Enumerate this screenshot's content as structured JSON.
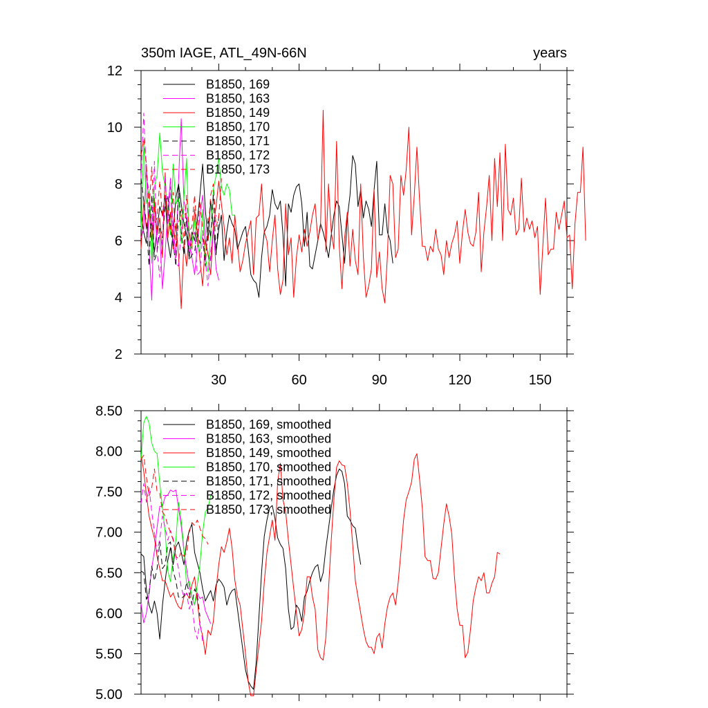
{
  "figure": {
    "title_left": "350m IAGE, ATL_49N-66N",
    "title_right": "years"
  },
  "chart_data": [
    {
      "type": "line",
      "name": "raw",
      "xlim": [
        1,
        160
      ],
      "ylim": [
        2,
        12
      ],
      "xticks": [
        30,
        60,
        90,
        120,
        150
      ],
      "yticks": [
        2,
        4,
        6,
        8,
        10,
        12
      ],
      "ytick_labels": [
        "2",
        "4",
        "6",
        "8",
        "10",
        "12"
      ],
      "series": [
        {
          "name": "B1850, 169",
          "color": "#000000",
          "dash": "",
          "values": [
            7.0,
            6.3,
            5.9,
            7.1,
            6.5,
            5.6,
            6.4,
            7.2,
            6.9,
            7.6,
            6.0,
            5.4,
            6.3,
            7.5,
            8.0,
            7.3,
            6.6,
            6.2,
            5.4,
            6.3,
            6.0,
            6.7,
            7.6,
            8.7,
            7.1,
            6.0,
            7.4,
            6.5,
            5.6,
            6.4,
            6.9,
            5.3,
            6.3,
            6.9,
            6.6,
            6.4,
            5.7,
            6.0,
            6.3,
            6.5,
            5.7,
            4.8,
            4.6,
            4.5,
            4.0,
            5.4,
            6.3,
            6.5,
            6.9,
            7.8,
            7.3,
            7.1,
            7.4,
            6.2,
            4.4,
            7.3,
            7.0,
            7.6,
            7.9,
            8.0,
            7.3,
            5.8,
            7.0,
            5.1,
            5.0,
            5.5,
            6.0,
            6.6,
            6.3,
            5.9,
            5.4,
            6.2,
            6.9,
            7.4,
            7.2,
            6.2,
            5.2,
            6.8,
            7.6,
            9.0,
            8.7,
            7.2,
            7.8,
            6.8,
            7.4,
            7.1,
            6.5,
            7.8,
            8.8,
            6.2,
            6.2,
            7.3,
            6.3,
            6.0,
            5.2
          ]
        },
        {
          "name": "B1850, 163",
          "color": "#ff00ff",
          "dash": "",
          "values": [
            6.1,
            6.4,
            8.7,
            5.8,
            3.9,
            7.4,
            5.8,
            6.2,
            4.3,
            5.6,
            7.0,
            8.2,
            6.5,
            5.4,
            8.1,
            10.3,
            7.4,
            6.9,
            6.0,
            5.4,
            4.8,
            5.8,
            6.9,
            7.6,
            6.1,
            5.5,
            5.3,
            6.5,
            5.0,
            4.6
          ]
        },
        {
          "name": "B1850, 149",
          "color": "#ff0000",
          "dash": "",
          "values": [
            5.7,
            7.4,
            6.4,
            7.0,
            6.0,
            7.5,
            6.2,
            6.8,
            5.4,
            8.4,
            6.1,
            7.0,
            5.7,
            6.6,
            5.5,
            3.6,
            5.9,
            5.1,
            6.3,
            5.7,
            7.1,
            6.3,
            5.3,
            4.4,
            6.0,
            5.5,
            4.8,
            6.5,
            7.2,
            8.1,
            7.3,
            6.5,
            5.5,
            6.1,
            5.2,
            6.9,
            5.9,
            4.9,
            5.3,
            5.9,
            6.3,
            6.7,
            4.8,
            6.8,
            6.9,
            8.0,
            6.3,
            6.0,
            4.9,
            6.0,
            6.9,
            5.0,
            4.1,
            4.6,
            7.3,
            5.5,
            6.1,
            4.0,
            5.4,
            6.2,
            5.6,
            6.4,
            5.8,
            6.3,
            6.9,
            7.3,
            6.0,
            6.5,
            10.6,
            5.6,
            8.0,
            6.3,
            5.7,
            9.5,
            5.8,
            4.3,
            6.1,
            7.0,
            5.1,
            6.4,
            5.3,
            4.8,
            8.0,
            5.4,
            4.0,
            4.4,
            5.0,
            7.8,
            4.7,
            5.6,
            4.3,
            3.8,
            5.5,
            8.3,
            8.0,
            5.4,
            5.7,
            8.3,
            7.6,
            8.5,
            10.0,
            6.2,
            7.6,
            9.3,
            7.4,
            5.8,
            5.8,
            5.3,
            5.8,
            5.6,
            6.4,
            5.7,
            5.5,
            4.8,
            6.0,
            5.4,
            5.9,
            6.2,
            6.7,
            5.2,
            6.3,
            7.1,
            6.3,
            5.9,
            5.8,
            6.3,
            7.7,
            4.9,
            6.3,
            7.2,
            8.3,
            6.0,
            8.9,
            7.2,
            9.1,
            6.0,
            9.4,
            7.1,
            6.9,
            7.5,
            6.2,
            6.4,
            8.2,
            6.3,
            6.8,
            6.4,
            6.7,
            6.1,
            6.5,
            4.1,
            5.8,
            7.5,
            5.5,
            5.7,
            5.7,
            7.0,
            6.4,
            6.9,
            7.4,
            6.1,
            6.2,
            4.3,
            6.6,
            7.7,
            7.7,
            9.3,
            6.0
          ]
        },
        {
          "name": "B1850, 170",
          "color": "#00ff00",
          "dash": "",
          "values": [
            6.4,
            9.4,
            7.3,
            7.8,
            5.2,
            7.9,
            8.3,
            9.8,
            8.4,
            7.9,
            7.0,
            6.2,
            8.7,
            7.3,
            7.5,
            5.9,
            7.5,
            8.9,
            5.7,
            5.8,
            6.8,
            5.9,
            5.6,
            7.1,
            5.4,
            4.9,
            6.2,
            7.8,
            8.3,
            8.9,
            7.9,
            7.6,
            8.0,
            7.8,
            6.9,
            6.9
          ]
        },
        {
          "name": "B1850, 171",
          "color": "#000000",
          "dash": "8,5",
          "values": [
            8.2,
            7.4,
            6.6,
            5.1,
            7.6,
            5.3,
            5.6,
            6.5,
            6.1,
            7.2,
            7.6,
            6.4,
            5.9,
            5.1,
            8.0,
            6.3,
            5.5,
            6.8,
            5.3,
            5.5,
            5.6,
            6.3,
            5.9,
            6.1,
            5.1,
            6.8,
            6.1,
            7.6,
            5.5,
            6.9
          ]
        },
        {
          "name": "B1850, 172",
          "color": "#ff00ff",
          "dash": "8,5",
          "values": [
            8.2,
            10.5,
            8.3,
            7.7,
            6.3,
            8.8,
            5.6,
            4.7,
            6.1,
            8.3,
            6.6,
            7.9,
            6.0,
            5.2,
            5.1,
            6.4,
            7.1,
            6.7,
            5.5,
            6.1,
            6.3,
            4.8,
            4.9,
            6.2,
            5.3,
            4.4,
            5.6,
            6.3,
            6.9
          ]
        },
        {
          "name": "B1850, 173",
          "color": "#ff0000",
          "dash": "8,5",
          "values": [
            9.0,
            9.6,
            8.7,
            7.1,
            8.6,
            6.6,
            6.8,
            8.1,
            6.8,
            7.6,
            7.0,
            6.4,
            7.7,
            5.8,
            6.6,
            7.1,
            5.9,
            7.6,
            6.3,
            6.5,
            7.6,
            6.1,
            7.4,
            6.4,
            5.4,
            6.2,
            7.6,
            8.0,
            6.5,
            6.8,
            8.2
          ]
        }
      ],
      "legend": {
        "placement": "top-left",
        "entries": [
          "B1850, 169",
          "B1850, 163",
          "B1850, 149",
          "B1850, 170",
          "B1850, 171",
          "B1850, 172",
          "B1850, 173"
        ]
      }
    },
    {
      "type": "line",
      "name": "smoothed",
      "xlim": [
        1,
        160
      ],
      "ylim": [
        5,
        8.5
      ],
      "xticks": [
        30,
        60,
        90,
        120,
        150
      ],
      "yticks": [
        5,
        5.5,
        6,
        6.5,
        7,
        7.5,
        8,
        8.5
      ],
      "ytick_labels": [
        "5.00",
        "5.50",
        "6.00",
        "6.50",
        "7.00",
        "7.50",
        "8.00",
        "8.50"
      ],
      "series": [
        {
          "name": "B1850, 169, smoothed",
          "color": "#000000",
          "dash": "",
          "values": [
            6.73,
            6.7,
            6.3,
            6.1,
            6.0,
            6.15,
            6.0,
            5.68,
            6.1,
            6.4,
            6.65,
            6.81,
            6.6,
            6.82,
            6.88,
            6.75,
            6.6,
            6.88,
            7.02,
            7.1,
            6.75,
            6.62,
            6.5,
            6.3,
            6.15,
            6.22,
            6.28,
            6.15,
            6.35,
            6.42,
            6.38,
            6.32,
            6.1,
            6.22,
            6.28,
            6.3,
            6.05,
            5.8,
            5.55,
            5.3,
            5.16,
            5.1,
            5.06,
            5.4,
            5.95,
            6.5,
            6.95,
            7.15,
            7.3,
            7.33,
            7.17,
            6.93,
            6.85,
            6.8,
            6.55,
            6.05,
            5.8,
            5.83,
            6.1,
            6.05,
            5.9,
            6.2,
            6.27,
            6.4,
            6.5,
            6.57,
            6.6,
            6.39,
            6.5,
            6.8,
            7.05,
            7.3,
            7.53,
            7.7,
            7.78,
            7.75,
            7.6,
            7.2,
            7.15,
            7.08,
            7.05,
            6.8,
            6.6
          ]
        },
        {
          "name": "B1850, 163, smoothed",
          "color": "#ff00ff",
          "dash": "",
          "values": [
            6.12,
            5.88,
            6.0,
            6.25,
            6.56,
            6.77,
            7.06,
            7.32,
            7.32,
            7.44,
            7.46,
            7.52,
            7.5,
            7.52,
            7.3,
            7.08,
            6.77,
            6.55,
            6.33,
            6.2,
            6.1,
            6.25,
            6.18,
            6.2,
            6.03,
            5.95,
            5.87
          ]
        },
        {
          "name": "B1850, 149, smoothed",
          "color": "#ff0000",
          "dash": "",
          "values": [
            7.96,
            7.75,
            7.47,
            7.2,
            7.05,
            6.92,
            6.7,
            6.55,
            6.4,
            6.4,
            6.3,
            6.2,
            6.25,
            6.15,
            6.08,
            6.05,
            6.2,
            6.25,
            6.18,
            6.35,
            6.45,
            6.15,
            5.85,
            5.72,
            5.49,
            5.79,
            5.73,
            5.9,
            6.3,
            6.6,
            6.82,
            6.75,
            6.88,
            7.05,
            6.8,
            6.41,
            6.2,
            6.1,
            5.8,
            5.5,
            5.15,
            4.98,
            4.98,
            5.3,
            5.6,
            5.9,
            6.38,
            6.75,
            6.95,
            7.15,
            6.9,
            7.62,
            7.85,
            7.4,
            7.25,
            6.9,
            6.6,
            6.3,
            6.01,
            5.72,
            5.8,
            6.0,
            6.45,
            6.45,
            6.2,
            6.05,
            5.55,
            5.45,
            5.42,
            5.7,
            6.3,
            6.9,
            7.4,
            7.8,
            7.88,
            7.83,
            7.82,
            7.6,
            7.27,
            6.85,
            6.4,
            6.2,
            6.0,
            5.8,
            5.65,
            5.58,
            5.58,
            5.5,
            5.7,
            5.75,
            5.57,
            5.87,
            6.08,
            6.2,
            6.25,
            6.1,
            6.38,
            6.75,
            7.15,
            7.4,
            7.5,
            7.62,
            7.9,
            7.97,
            7.65,
            7.3,
            6.7,
            6.65,
            6.65,
            6.43,
            6.42,
            6.5,
            6.8,
            7.1,
            7.35,
            7.2,
            6.98,
            6.45,
            6.05,
            5.85,
            5.85,
            5.45,
            5.52,
            5.8,
            6.15,
            6.32,
            6.45,
            6.4,
            6.5,
            6.25,
            6.25,
            6.37,
            6.45,
            6.75,
            6.73
          ]
        },
        {
          "name": "B1850, 170, smoothed",
          "color": "#00ff00",
          "dash": "",
          "values": [
            7.9,
            8.35,
            8.43,
            8.35,
            8.1,
            8.0,
            7.97,
            7.6,
            7.3,
            7.0,
            6.52,
            6.39,
            6.7,
            6.9,
            7.37,
            7.15,
            6.8,
            6.35,
            6.4,
            6.2,
            6.1,
            6.35,
            6.6,
            7.0,
            7.25,
            7.3,
            7.45
          ]
        },
        {
          "name": "B1850, 171, smoothed",
          "color": "#000000",
          "dash": "8,5",
          "values": [
            6.52,
            6.5,
            6.17,
            6.25,
            6.58,
            6.4,
            6.55,
            6.88,
            6.55,
            6.6,
            6.85,
            6.88,
            6.52,
            6.4,
            6.2,
            6.18,
            6.21,
            6.38,
            6.25,
            6.1,
            6.3,
            6.22,
            5.96
          ]
        },
        {
          "name": "B1850, 172, smoothed",
          "color": "#ff00ff",
          "dash": "8,5",
          "values": [
            7.35,
            7.6,
            7.37,
            7.55,
            7.25,
            7.0,
            6.75,
            6.92,
            7.2,
            7.05,
            6.9,
            7.02,
            6.92,
            6.7,
            6.55,
            6.32,
            6.2,
            6.25,
            6.05,
            6.15,
            5.8,
            5.68,
            5.9,
            5.65
          ]
        },
        {
          "name": "B1850, 173, smoothed",
          "color": "#ff0000",
          "dash": "8,5",
          "values": [
            7.9,
            7.95,
            7.68,
            7.45,
            7.55,
            7.78,
            7.5,
            7.48,
            7.25,
            7.2,
            7.08,
            7.0,
            6.9,
            6.7,
            6.67,
            6.76,
            6.7,
            6.75,
            7.0,
            7.12,
            7.08,
            7.15,
            7.05,
            6.95,
            6.92,
            6.85
          ]
        }
      ],
      "legend": {
        "placement": "top-left",
        "entries": [
          "B1850, 169, smoothed",
          "B1850, 163, smoothed",
          "B1850, 149, smoothed",
          "B1850, 170, smoothed",
          "B1850, 171, smoothed",
          "B1850, 172, smoothed",
          "B1850, 173, smoothed"
        ]
      }
    }
  ]
}
